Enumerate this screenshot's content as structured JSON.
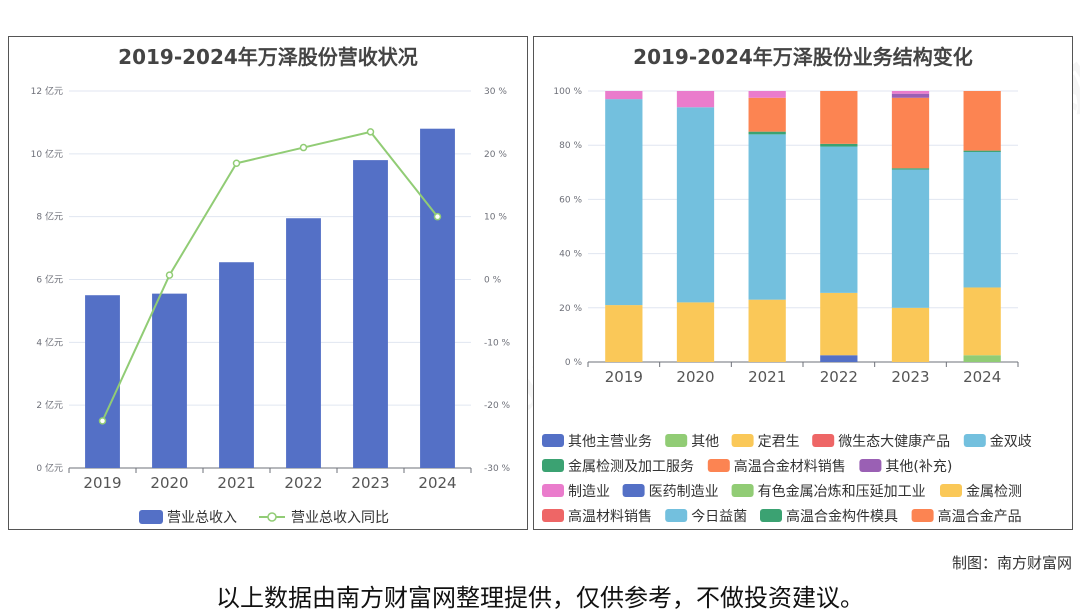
{
  "chart_data": [
    {
      "type": "bar",
      "title": "2019-2024年万泽股份营收状况",
      "categories": [
        "2019",
        "2020",
        "2021",
        "2022",
        "2023",
        "2024"
      ],
      "series": [
        {
          "name": "营业总收入",
          "type": "bar",
          "axis": "left",
          "color": "#5470c6",
          "values": [
            5.5,
            5.55,
            6.55,
            7.95,
            9.8,
            10.8
          ]
        },
        {
          "name": "营业总收入同比",
          "type": "line",
          "axis": "right",
          "color": "#91cc75",
          "values": [
            -22.5,
            0.7,
            18.5,
            21.0,
            23.5,
            10.0
          ]
        }
      ],
      "y_left": {
        "min": 0,
        "max": 12,
        "ticks": [
          "0 亿元",
          "2 亿元",
          "4 亿元",
          "6 亿元",
          "8 亿元",
          "10 亿元",
          "12 亿元"
        ]
      },
      "y_right": {
        "min": -30,
        "max": 30,
        "ticks": [
          "-30 %",
          "-20 %",
          "-10 %",
          "0 %",
          "10 %",
          "20 %",
          "30 %"
        ]
      },
      "grid": true,
      "legend": "bottom"
    },
    {
      "type": "bar",
      "stacked": true,
      "title": "2019-2024年万泽股份业务结构变化",
      "categories": [
        "2019",
        "2020",
        "2021",
        "2022",
        "2023",
        "2024"
      ],
      "y_ticks": [
        "0 %",
        "20 %",
        "40 %",
        "60 %",
        "80 %",
        "100 %"
      ],
      "ylim": [
        0,
        100
      ],
      "grid": true,
      "legend": "bottom",
      "series": [
        {
          "name": "其他主营业务",
          "color": "#5470c6",
          "values": [
            0,
            0,
            0,
            2.5,
            0,
            0
          ]
        },
        {
          "name": "其他",
          "color": "#91cc75",
          "values": [
            0,
            0,
            0,
            0,
            0,
            2.5
          ]
        },
        {
          "name": "定君生",
          "color": "#fac858",
          "values": [
            21,
            22,
            23,
            23,
            20,
            25
          ]
        },
        {
          "name": "微生态大健康产品",
          "color": "#ee6666",
          "values": [
            0,
            0,
            0,
            0,
            0,
            0
          ]
        },
        {
          "name": "金双歧",
          "color": "#73c0de",
          "values": [
            76,
            72,
            61,
            54,
            51,
            50
          ]
        },
        {
          "name": "金属检测及加工服务",
          "color": "#3ba272",
          "values": [
            0,
            0,
            1,
            1,
            0.5,
            0.5
          ]
        },
        {
          "name": "高温合金材料销售",
          "color": "#fc8452",
          "values": [
            0,
            0,
            12.5,
            19.5,
            26,
            22
          ]
        },
        {
          "name": "其他(补充)",
          "color": "#9a60b4",
          "values": [
            0,
            0,
            0,
            0,
            1.5,
            0
          ]
        },
        {
          "name": "制造业",
          "color": "#ea7ccc",
          "values": [
            3,
            6,
            2.5,
            0,
            1,
            0
          ]
        },
        {
          "name": "医药制造业",
          "color": "#5470c6",
          "values": [
            0,
            0,
            0,
            0,
            0,
            0
          ]
        },
        {
          "name": "有色金属冶炼和压延加工业",
          "color": "#91cc75",
          "values": [
            0,
            0,
            0,
            0,
            0,
            0
          ]
        },
        {
          "name": "金属检测",
          "color": "#fac858",
          "values": [
            0,
            0,
            0,
            0,
            0,
            0
          ]
        },
        {
          "name": "高温材料销售",
          "color": "#ee6666",
          "values": [
            0,
            0,
            0,
            0,
            0,
            0
          ]
        },
        {
          "name": "今日益菌",
          "color": "#73c0de",
          "values": [
            0,
            0,
            0,
            0,
            0,
            0
          ]
        },
        {
          "name": "高温合金构件模具",
          "color": "#3ba272",
          "values": [
            0,
            0,
            0,
            0,
            0,
            0
          ]
        },
        {
          "name": "高温合金产品",
          "color": "#fc8452",
          "values": [
            0,
            0,
            0,
            0,
            0,
            0
          ]
        }
      ]
    }
  ],
  "footer": {
    "credit": "制图：南方财富网",
    "disclaimer": "以上数据由南方财富网整理提供，仅供参考，不做投资建议。"
  },
  "watermark": {
    "text": "南方财富网",
    "url": "southmoney.com"
  }
}
